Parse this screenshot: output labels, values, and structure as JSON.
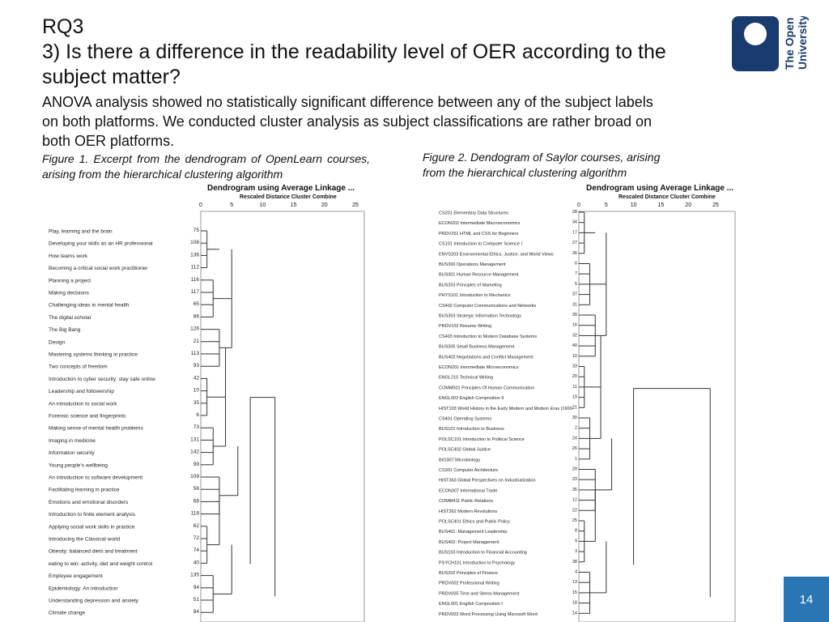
{
  "title_lines": [
    "RQ3",
    "3) Is there a difference in the readability level of OER according to the",
    "subject matter?"
  ],
  "body_lines": [
    "ANOVA analysis showed no statistically significant difference between any of the subject labels",
    "on both platforms. We conducted cluster analysis as subject classifications are rather broad on",
    "both OER platforms."
  ],
  "logo": {
    "line1": "The Open",
    "line2": "University",
    "color": "#1a3b6e"
  },
  "captions": {
    "fig1": "Figure 1. Excerpt from the dendrogram of OpenLearn courses, arising from the hierarchical clustering algorithm",
    "fig2_line1": "Figure 2. Dendogram of Saylor courses, arising",
    "fig2_line2": "from the hierarchical clustering algorithm"
  },
  "page_number": "14",
  "chart_data": [
    {
      "type": "dendrogram",
      "title": "Dendrogram using Average Linkage ...",
      "subtitle": "Rescaled Distance Cluster Combine",
      "ticks": [
        "0",
        "5",
        "10",
        "15",
        "20",
        "25"
      ],
      "items": [
        {
          "label": "Play, learning and the brain",
          "id": "75"
        },
        {
          "label": "Developing your skills as an HR professional",
          "id": "108"
        },
        {
          "label": "How teams work",
          "id": "136"
        },
        {
          "label": "Becoming a critical social work practitioner",
          "id": "112"
        },
        {
          "label": "Planning a project",
          "id": "116"
        },
        {
          "label": "Making decisions",
          "id": "117"
        },
        {
          "label": "Challenging ideas in mental health",
          "id": "65"
        },
        {
          "label": "The digital scholar",
          "id": "86"
        },
        {
          "label": "The Big Bang",
          "id": "126"
        },
        {
          "label": "Design",
          "id": "21"
        },
        {
          "label": "Mastering systems thinking in practice",
          "id": "113"
        },
        {
          "label": "Two concepts of freedom",
          "id": "93"
        },
        {
          "label": "Introduction to cyber security: stay safe online",
          "id": "42"
        },
        {
          "label": "Leadership and followership",
          "id": "10"
        },
        {
          "label": "An introduction to social work",
          "id": "35"
        },
        {
          "label": "Forensic science and fingerprints",
          "id": "6"
        },
        {
          "label": "Making sense of mental health problems",
          "id": "73"
        },
        {
          "label": "Imaging in medicine",
          "id": "131"
        },
        {
          "label": "Information security",
          "id": "142"
        },
        {
          "label": "Young people's wellbeing",
          "id": "99"
        },
        {
          "label": "An introduction to software development",
          "id": "109"
        },
        {
          "label": "Facilitating learning in practice",
          "id": "56"
        },
        {
          "label": "Emotions and emotional disorders",
          "id": "68"
        },
        {
          "label": "Introduction to finite element analysis",
          "id": "118"
        },
        {
          "label": "Applying social work skills in practice",
          "id": "62"
        },
        {
          "label": "Introducing the Classical world",
          "id": "72"
        },
        {
          "label": "Obesity: balanced diets and treatment",
          "id": "74"
        },
        {
          "label": "eating to win: activity, diet and weight control",
          "id": "40"
        },
        {
          "label": "Employee engagement",
          "id": "135"
        },
        {
          "label": "Epidemiology: An introduction",
          "id": "94"
        },
        {
          "label": "Understanding depression and anxiety",
          "id": "51"
        },
        {
          "label": "Climate change",
          "id": "84"
        }
      ]
    },
    {
      "type": "dendrogram",
      "title": "Dendrogram using Average Linkage ...",
      "subtitle": "Rescaled Distance Cluster Combine",
      "ticks": [
        "0",
        "5",
        "10",
        "15",
        "20",
        "25"
      ],
      "items": [
        {
          "label": "CS201 Elementary Data Structures",
          "id": "28"
        },
        {
          "label": "ECON202 Intermediate Macroeconomics",
          "id": "34"
        },
        {
          "label": "PRDV251 HTML and CSS for Beginners",
          "id": "17"
        },
        {
          "label": "CS101 Introduction to Computer Science I",
          "id": "27"
        },
        {
          "label": "ENVS203 Environmental Ethics, Justice, and World Views",
          "id": "36"
        },
        {
          "label": "BUS300 Operations Management",
          "id": "6"
        },
        {
          "label": "BUS301 Human Resource Management",
          "id": "7"
        },
        {
          "label": "BUS203 Principles of Marketing",
          "id": "5"
        },
        {
          "label": "PHYS101 Introduction to Mechanics",
          "id": "37"
        },
        {
          "label": "CS402 Computer Communications and Networks",
          "id": "31"
        },
        {
          "label": "BUS303 Strategic Information Technology",
          "id": "39"
        },
        {
          "label": "PRDV102 Resume Writing",
          "id": "16"
        },
        {
          "label": "CS403 Introduction to Modern Database Systems",
          "id": "32"
        },
        {
          "label": "BUS305 Small Business Management",
          "id": "40"
        },
        {
          "label": "BUS403 Negotiations and Conflict Management",
          "id": "10"
        },
        {
          "label": "ECON201 Intermediate Microeconomics",
          "id": "33"
        },
        {
          "label": "ENGL210 Technical Writing",
          "id": "20"
        },
        {
          "label": "COMM001 Principles Of Human Communication",
          "id": "11"
        },
        {
          "label": "ENGL002 English Composition II",
          "id": "19"
        },
        {
          "label": "HIST103 World History in the Early Modern and Modern Eras (1600-",
          "id": "21"
        },
        {
          "label": "CS401 Operating Systems",
          "id": "30"
        },
        {
          "label": "BUS101 Introduction to Business",
          "id": "2"
        },
        {
          "label": "POLSC101 Introduction to Political Science",
          "id": "24"
        },
        {
          "label": "POLSC402 Global Justice",
          "id": "26"
        },
        {
          "label": "BIO307 Microbiology",
          "id": "1"
        },
        {
          "label": "CS301 Computer Architecture",
          "id": "29"
        },
        {
          "label": "HIST363 Global Perspectives on Industrialization",
          "id": "23"
        },
        {
          "label": "ECON307 International Trade",
          "id": "35"
        },
        {
          "label": "COMM411 Public Relations",
          "id": "12"
        },
        {
          "label": "HIST362 Modern Revolutions",
          "id": "22"
        },
        {
          "label": "POLSC401 Ethics and Public Policy",
          "id": "25"
        },
        {
          "label": "BUS401: Management Leadership",
          "id": "8"
        },
        {
          "label": "BUS402: Project Management",
          "id": "9"
        },
        {
          "label": "BUS103 Introduction to Financial Accounting",
          "id": "3"
        },
        {
          "label": "PSYCH101 Introduction to Psychology",
          "id": "38"
        },
        {
          "label": "BUS202 Principles of Finance",
          "id": "4"
        },
        {
          "label": "PRDV002 Professional Writing",
          "id": "13"
        },
        {
          "label": "PRDV005 Time and Stress Management",
          "id": "15"
        },
        {
          "label": "ENGL001 English Composition I",
          "id": "18"
        },
        {
          "label": "PRDV003 Word Processing Using Microsoft Word",
          "id": "14"
        }
      ]
    }
  ]
}
